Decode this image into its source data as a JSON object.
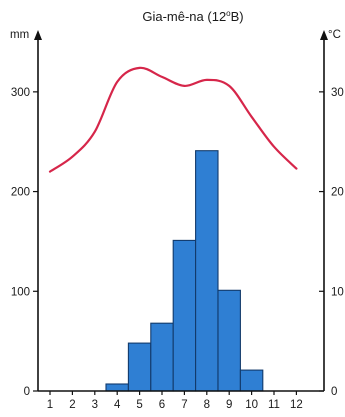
{
  "chart_data": {
    "type": "bar",
    "title": "Gia-mê-na (12",
    "title_sup": "o",
    "title_end": "B)",
    "left_unit": "mm",
    "right_unit": "°C",
    "categories": [
      "1",
      "2",
      "3",
      "4",
      "5",
      "6",
      "7",
      "8",
      "9",
      "10",
      "11",
      "12"
    ],
    "precipitation": [
      0,
      0,
      0,
      7,
      48,
      68,
      151,
      241,
      101,
      21,
      0,
      0
    ],
    "temperature": [
      22,
      23.5,
      26,
      31,
      32.4,
      31.5,
      30.6,
      31.2,
      30.6,
      27.5,
      24.5,
      22.3
    ],
    "left_ticks": [
      "0",
      "100",
      "200",
      "300"
    ],
    "right_ticks": [
      "0",
      "10",
      "20",
      "30"
    ],
    "ylim_left": [
      0,
      350
    ],
    "ylim_right": [
      0,
      35
    ],
    "colors": {
      "bars": "#2f7fd3",
      "bar_edge": "#123a6b",
      "temperature_line": "#d6264a",
      "axis": "#111111"
    }
  }
}
